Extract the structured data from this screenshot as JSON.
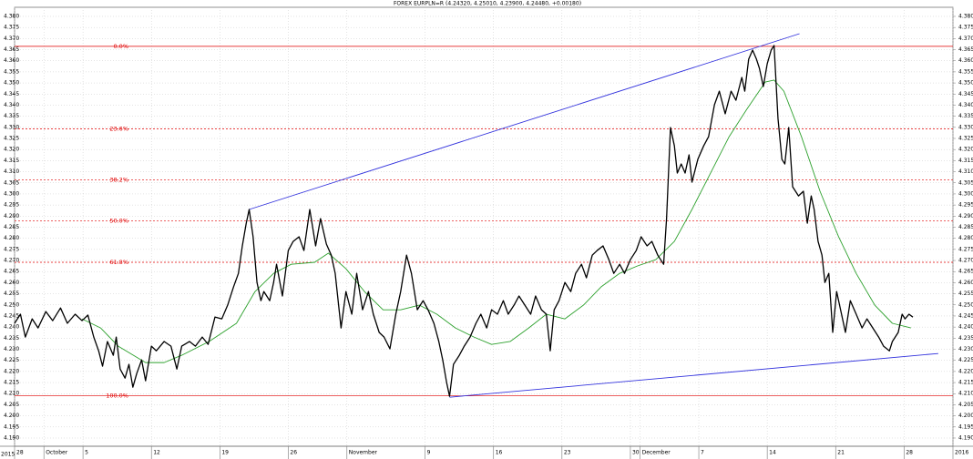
{
  "chart_data": {
    "type": "line",
    "title": "FOREX EURPLN=R (4.24320, 4.25010, 4.23900, 4.24480, +0.00180)",
    "xlim": [
      0,
      96
    ],
    "ylim": [
      4.1863,
      4.3841
    ],
    "x_year_label": "2015",
    "xticks": [
      {
        "value": 0,
        "label": "28"
      },
      {
        "value": 3,
        "label": "October"
      },
      {
        "value": 7,
        "label": "5"
      },
      {
        "value": 14,
        "label": "12"
      },
      {
        "value": 21,
        "label": "19"
      },
      {
        "value": 28,
        "label": "26"
      },
      {
        "value": 34,
        "label": "November"
      },
      {
        "value": 42,
        "label": "9"
      },
      {
        "value": 49,
        "label": "16"
      },
      {
        "value": 56,
        "label": "23"
      },
      {
        "value": 63,
        "label": "30"
      },
      {
        "value": 64,
        "label": "December"
      },
      {
        "value": 70,
        "label": "7"
      },
      {
        "value": 77,
        "label": "14"
      },
      {
        "value": 84,
        "label": "21"
      },
      {
        "value": 91,
        "label": "28"
      },
      {
        "value": 96,
        "label": "2016"
      }
    ],
    "yticks": [
      {
        "value": 4.19,
        "label": "4.190"
      },
      {
        "value": 4.195,
        "label": "4.195"
      },
      {
        "value": 4.2,
        "label": "4.200"
      },
      {
        "value": 4.205,
        "label": "4.205"
      },
      {
        "value": 4.21,
        "label": "4.210"
      },
      {
        "value": 4.215,
        "label": "4.215"
      },
      {
        "value": 4.22,
        "label": "4.220"
      },
      {
        "value": 4.225,
        "label": "4.225"
      },
      {
        "value": 4.23,
        "label": "4.230"
      },
      {
        "value": 4.235,
        "label": "4.235"
      },
      {
        "value": 4.24,
        "label": "4.240"
      },
      {
        "value": 4.245,
        "label": "4.245"
      },
      {
        "value": 4.25,
        "label": "4.250"
      },
      {
        "value": 4.255,
        "label": "4.255"
      },
      {
        "value": 4.26,
        "label": "4.260"
      },
      {
        "value": 4.265,
        "label": "4.265"
      },
      {
        "value": 4.27,
        "label": "4.270"
      },
      {
        "value": 4.275,
        "label": "4.275"
      },
      {
        "value": 4.28,
        "label": "4.280"
      },
      {
        "value": 4.285,
        "label": "4.285"
      },
      {
        "value": 4.29,
        "label": "4.290"
      },
      {
        "value": 4.295,
        "label": "4.295"
      },
      {
        "value": 4.3,
        "label": "4.300"
      },
      {
        "value": 4.305,
        "label": "4.305"
      },
      {
        "value": 4.31,
        "label": "4.310"
      },
      {
        "value": 4.315,
        "label": "4.315"
      },
      {
        "value": 4.32,
        "label": "4.320"
      },
      {
        "value": 4.325,
        "label": "4.325"
      },
      {
        "value": 4.33,
        "label": "4.330"
      },
      {
        "value": 4.335,
        "label": "4.335"
      },
      {
        "value": 4.34,
        "label": "4.340"
      },
      {
        "value": 4.345,
        "label": "4.345"
      },
      {
        "value": 4.35,
        "label": "4.350"
      },
      {
        "value": 4.355,
        "label": "4.355"
      },
      {
        "value": 4.36,
        "label": "4.360"
      },
      {
        "value": 4.365,
        "label": "4.365"
      },
      {
        "value": 4.37,
        "label": "4.370"
      },
      {
        "value": 4.375,
        "label": "4.375"
      },
      {
        "value": 4.38,
        "label": "4.380"
      }
    ],
    "grid": true,
    "series": [
      {
        "color": "#000000",
        "width": 1.3,
        "x": [
          0,
          0.6,
          1.1,
          1.8,
          2.4,
          3.2,
          3.9,
          4.7,
          5.4,
          6.2,
          6.9,
          7.5,
          8.1,
          8.6,
          9.0,
          9.5,
          10.1,
          10.4,
          10.8,
          11.3,
          11.7,
          12.1,
          12.5,
          13.0,
          13.4,
          14.0,
          14.5,
          15.3,
          16.0,
          16.6,
          17.1,
          17.9,
          18.5,
          19.2,
          19.8,
          20.5,
          21.2,
          21.8,
          22.4,
          22.9,
          23.3,
          23.7,
          24.0,
          24.4,
          24.8,
          25.2,
          25.5,
          26.1,
          26.5,
          26.8,
          27.4,
          28.0,
          28.5,
          29.1,
          29.6,
          30.2,
          30.8,
          31.3,
          31.9,
          32.4,
          32.8,
          33.4,
          33.9,
          34.5,
          35.0,
          35.6,
          36.2,
          36.7,
          37.3,
          37.8,
          38.4,
          39.0,
          39.5,
          40.1,
          40.6,
          41.2,
          41.8,
          42.3,
          42.9,
          43.4,
          43.8,
          44.2,
          44.5,
          44.9,
          45.5,
          46.0,
          46.6,
          47.2,
          47.7,
          48.3,
          48.8,
          49.4,
          50.0,
          50.5,
          51.1,
          51.6,
          52.2,
          52.8,
          53.3,
          53.9,
          54.4,
          54.8,
          55.2,
          55.7,
          56.3,
          56.9,
          57.4,
          58.0,
          58.5,
          59.1,
          59.6,
          60.2,
          60.8,
          61.3,
          61.9,
          62.4,
          63.0,
          63.6,
          64.1,
          64.7,
          65.2,
          65.8,
          66.4,
          66.7,
          67.1,
          67.5,
          67.8,
          68.2,
          68.6,
          69.0,
          69.3,
          69.9,
          70.5,
          71.0,
          71.6,
          72.1,
          72.7,
          73.3,
          73.8,
          74.4,
          74.7,
          75.1,
          75.5,
          75.9,
          76.2,
          76.6,
          77.0,
          77.4,
          77.7,
          78.1,
          78.5,
          78.8,
          79.2,
          79.6,
          80.2,
          80.7,
          81.1,
          81.5,
          81.8,
          82.2,
          82.6,
          82.9,
          83.3,
          83.7,
          84.1,
          84.4,
          85.0,
          85.5,
          86.1,
          86.7,
          87.2,
          87.8,
          88.4,
          88.9,
          89.5,
          89.8,
          90.4,
          90.8,
          91.1,
          91.5,
          91.9
        ],
        "values": [
          4.2417,
          4.2458,
          4.2355,
          4.2437,
          4.2396,
          4.247,
          4.2429,
          4.2486,
          4.2417,
          4.2458,
          4.2429,
          4.2454,
          4.2355,
          4.2293,
          4.2224,
          4.2335,
          4.2273,
          4.2355,
          4.2211,
          4.217,
          4.2232,
          4.2129,
          4.2191,
          4.2252,
          4.2158,
          4.2314,
          4.2293,
          4.2335,
          4.2314,
          4.2211,
          4.2314,
          4.2335,
          4.2314,
          4.2355,
          4.2322,
          4.2445,
          4.2437,
          4.2499,
          4.2581,
          4.2642,
          4.2766,
          4.2868,
          4.293,
          4.2807,
          4.2601,
          4.2519,
          4.256,
          4.2519,
          4.2601,
          4.2683,
          4.254,
          4.2745,
          4.2786,
          4.2807,
          4.2745,
          4.293,
          4.2766,
          4.2889,
          4.2774,
          4.2724,
          4.2642,
          4.2396,
          4.256,
          4.2458,
          4.2642,
          4.2478,
          4.256,
          4.2458,
          4.2376,
          4.2355,
          4.2302,
          4.2458,
          4.256,
          4.2724,
          4.2642,
          4.2478,
          4.2519,
          4.2478,
          4.2417,
          4.2335,
          4.2252,
          4.215,
          4.2088,
          4.2232,
          4.2273,
          4.2314,
          4.2355,
          4.2417,
          4.2458,
          4.2396,
          4.2478,
          4.2458,
          4.2519,
          4.2458,
          4.2499,
          4.254,
          4.2499,
          4.2458,
          4.254,
          4.2478,
          4.2458,
          4.2293,
          4.2478,
          4.2519,
          4.2601,
          4.256,
          4.2642,
          4.2683,
          4.2622,
          4.2724,
          4.2745,
          4.2766,
          4.2704,
          4.2642,
          4.2683,
          4.2642,
          4.2704,
          4.2745,
          4.2807,
          4.2766,
          4.2786,
          4.2724,
          4.2683,
          4.2889,
          4.3299,
          4.3217,
          4.3094,
          4.3135,
          4.3094,
          4.3176,
          4.3053,
          4.3156,
          4.3217,
          4.3258,
          4.3402,
          4.3463,
          4.3361,
          4.3463,
          4.3422,
          4.3525,
          4.3463,
          4.3607,
          4.3648,
          4.3607,
          4.3566,
          4.3484,
          4.3587,
          4.3648,
          4.3669,
          4.334,
          4.3156,
          4.3135,
          4.3299,
          4.3032,
          4.2991,
          4.3012,
          4.2868,
          4.2991,
          4.293,
          4.2786,
          4.2724,
          4.2601,
          4.2642,
          4.2376,
          4.256,
          4.2499,
          4.2376,
          4.2519,
          4.2458,
          4.2396,
          4.2437,
          4.2396,
          4.2355,
          4.2314,
          4.2293,
          4.2335,
          4.2376,
          4.2458,
          4.2437,
          4.2458,
          4.2445
        ]
      },
      {
        "color": "#2ca02c",
        "width": 0.9,
        "x": [
          6.9,
          8.8,
          10.6,
          13.4,
          15.3,
          17.1,
          19.9,
          22.7,
          24.6,
          26.5,
          28.3,
          30.7,
          32.1,
          33.9,
          35.8,
          37.7,
          39.5,
          41.4,
          43.2,
          45.1,
          47.0,
          48.8,
          50.7,
          52.6,
          54.4,
          56.3,
          58.2,
          60.0,
          61.9,
          63.7,
          65.6,
          67.5,
          69.3,
          71.2,
          73.1,
          74.9,
          76.8,
          77.7,
          78.7,
          80.5,
          82.4,
          84.3,
          86.1,
          88.0,
          89.8,
          91.7
        ],
        "values": [
          4.2437,
          4.2396,
          4.2314,
          4.224,
          4.224,
          4.2273,
          4.2335,
          4.2417,
          4.256,
          4.2642,
          4.2683,
          4.2692,
          4.2733,
          4.2663,
          4.256,
          4.2478,
          4.2478,
          4.2499,
          4.2458,
          4.2396,
          4.2355,
          4.2322,
          4.2335,
          4.2396,
          4.2458,
          4.2437,
          4.2499,
          4.2581,
          4.2642,
          4.2675,
          4.2704,
          4.2786,
          4.293,
          4.3094,
          4.3258,
          4.3381,
          4.3504,
          4.3513,
          4.3463,
          4.3258,
          4.3012,
          4.2807,
          4.2642,
          4.2499,
          4.2417,
          4.2396
        ]
      }
    ],
    "trendlines": {
      "color": "#3333dd",
      "lines": [
        {
          "x": [
            24.0,
            80.3
          ],
          "values": [
            4.293,
            4.3722
          ]
        },
        {
          "x": [
            44.5,
            94.5
          ],
          "values": [
            4.2084,
            4.2281
          ]
        }
      ]
    },
    "fibonacci": {
      "color": "#e00000",
      "ratios": [
        0,
        23.6,
        38.2,
        50,
        61.8,
        100
      ],
      "ratio_labels": [
        "0.0%",
        "23.6%",
        "38.2%",
        "50.0%",
        "61.8%",
        "100.0%"
      ],
      "levels": [
        4.3665,
        4.3293,
        4.3063,
        4.2878,
        4.2692,
        4.209
      ],
      "line_styles": [
        "solid",
        "dashed",
        "dashed",
        "dashed",
        "dashed",
        "solid"
      ]
    }
  }
}
